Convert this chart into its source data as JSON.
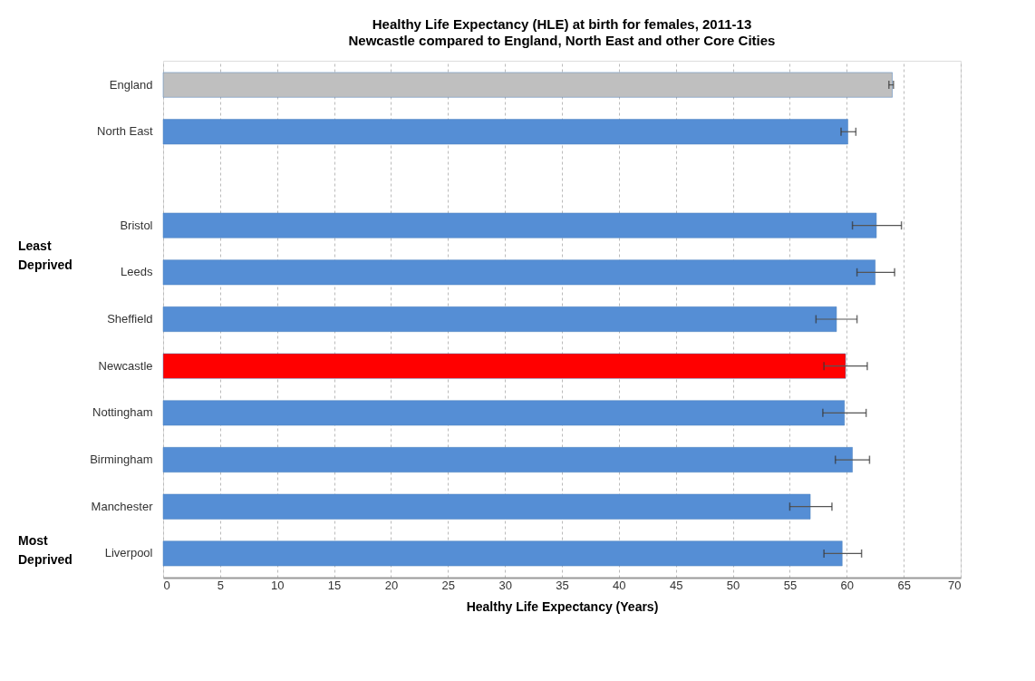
{
  "chart_data": {
    "type": "bar",
    "orientation": "horizontal",
    "title": "Healthy Life Expectancy (HLE) at birth for females, 2011-13",
    "subtitle": "Newcastle compared to England, North East and other Core Cities",
    "xlabel": "Healthy Life Expectancy (Years)",
    "categories": [
      "England",
      "North East",
      null,
      "Bristol",
      "Leeds",
      "Sheffield",
      "Newcastle",
      "Nottingham",
      "Birmingham",
      "Manchester",
      "Liverpool"
    ],
    "values": [
      64.0,
      60.1,
      null,
      62.6,
      62.5,
      59.1,
      59.9,
      59.8,
      60.5,
      56.8,
      59.6
    ],
    "colors": [
      "#bfbfbf",
      "#558ed5",
      "#558ed5",
      "#558ed5",
      "#558ed5",
      "#558ed5",
      "#ff0000",
      "#558ed5",
      "#558ed5",
      "#558ed5",
      "#558ed5"
    ],
    "errors": [
      [
        63.7,
        64.1
      ],
      [
        59.5,
        60.8
      ],
      null,
      [
        60.5,
        64.8
      ],
      [
        60.9,
        64.2
      ],
      [
        57.3,
        60.9
      ],
      [
        58.0,
        61.8
      ],
      [
        57.9,
        61.7
      ],
      [
        59.0,
        62.0
      ],
      [
        55.0,
        58.7
      ],
      [
        58.0,
        61.3
      ]
    ],
    "xlim": [
      0,
      70
    ],
    "xticks": [
      0,
      5,
      10,
      15,
      20,
      25,
      30,
      35,
      40,
      45,
      50,
      55,
      60,
      65,
      70
    ],
    "grid": "x",
    "annotations": [
      "Least Deprived",
      "Most Deprived"
    ]
  }
}
